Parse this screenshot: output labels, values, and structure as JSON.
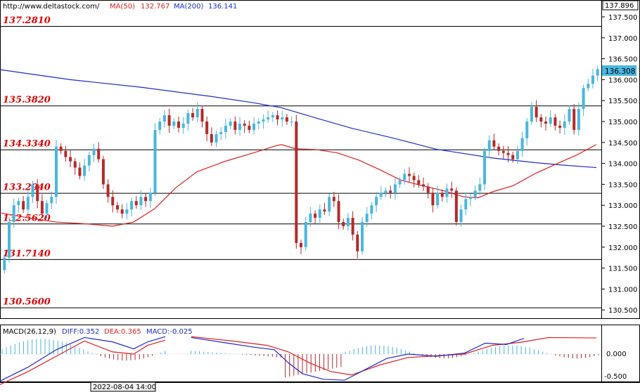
{
  "header": {
    "url": "http://www.deltastock.com/",
    "ma50_label": "MA(50)",
    "ma50_value": "132.767",
    "ma200_label": "MA(200)",
    "ma200_value": "136.141"
  },
  "colors": {
    "bull": "#49b7e0",
    "bear": "#b52a2a",
    "ma50": "#e02020",
    "ma200": "#1f2bd0",
    "level_text": "#e00000",
    "macd_diff": "#1f2bd0",
    "macd_dea": "#e02020",
    "hist_pos": "#49b7e0",
    "hist_neg": "#b52a2a"
  },
  "price_axis": {
    "top_value": "137.896",
    "current_value": "136.308",
    "ticks": [
      "137.500",
      "137.000",
      "136.500",
      "136.000",
      "135.500",
      "135.000",
      "134.500",
      "134.000",
      "133.500",
      "133.000",
      "132.500",
      "132.000",
      "131.500",
      "131.000",
      "130.500"
    ]
  },
  "levels": [
    {
      "label": "137.2810",
      "value": 137.281
    },
    {
      "label": "135.3820",
      "value": 135.382
    },
    {
      "label": "134.3340",
      "value": 134.334
    },
    {
      "label": "133.2940",
      "value": 133.294
    },
    {
      "label": "132.5620",
      "value": 132.562
    },
    {
      "label": "131.7140",
      "value": 131.714
    },
    {
      "label": "130.5600",
      "value": 130.56
    }
  ],
  "macd": {
    "title": "MACD(26,12,9)",
    "diff_label": "DIFF:0.352",
    "dea_label": "DEA:0.365",
    "macd_label": "MACD:-0.025",
    "ticks": [
      "0.000",
      "-0.500"
    ]
  },
  "time_label": "2022-08-04 14:00",
  "chart_data": {
    "type": "candlestick",
    "ylim": [
      130.37,
      137.9
    ],
    "ma200": [
      [
        0,
        136.24
      ],
      [
        100,
        136.0
      ],
      [
        200,
        135.82
      ],
      [
        300,
        135.6
      ],
      [
        360,
        135.45
      ],
      [
        400,
        135.33
      ],
      [
        450,
        135.08
      ],
      [
        500,
        134.84
      ],
      [
        560,
        134.6
      ],
      [
        620,
        134.34
      ],
      [
        700,
        134.13
      ],
      [
        760,
        134.02
      ],
      [
        800,
        133.96
      ],
      [
        848,
        133.9
      ]
    ],
    "ma50": [
      [
        0,
        132.82
      ],
      [
        40,
        132.7
      ],
      [
        80,
        132.6
      ],
      [
        120,
        132.56
      ],
      [
        160,
        132.5
      ],
      [
        190,
        132.6
      ],
      [
        220,
        132.92
      ],
      [
        250,
        133.42
      ],
      [
        280,
        133.8
      ],
      [
        320,
        134.05
      ],
      [
        360,
        134.25
      ],
      [
        390,
        134.41
      ],
      [
        400,
        134.45
      ],
      [
        420,
        134.35
      ],
      [
        450,
        134.33
      ],
      [
        480,
        134.25
      ],
      [
        510,
        134.08
      ],
      [
        540,
        133.85
      ],
      [
        570,
        133.6
      ],
      [
        600,
        133.47
      ],
      [
        630,
        133.35
      ],
      [
        660,
        133.2
      ],
      [
        680,
        133.18
      ],
      [
        700,
        133.32
      ],
      [
        730,
        133.47
      ],
      [
        760,
        133.75
      ],
      [
        790,
        133.98
      ],
      [
        820,
        134.2
      ],
      [
        848,
        134.45
      ]
    ],
    "candles": [
      [
        135.5,
        135.8,
        135.3,
        135.75
      ],
      [
        135.85,
        135.9,
        135.45,
        135.6
      ],
      [
        135.6,
        135.95,
        135.55,
        135.9
      ],
      [
        135.9,
        135.95,
        135.65,
        135.7
      ],
      [
        135.7,
        135.75,
        135.5,
        135.55
      ],
      [
        135.55,
        135.8,
        135.5,
        135.75
      ],
      [
        135.75,
        136.05,
        135.7,
        136.0
      ],
      [
        136.0,
        136.1,
        135.85,
        135.9
      ],
      [
        135.9,
        136.2,
        135.85,
        136.15
      ],
      [
        136.15,
        136.35,
        136.05,
        136.3
      ],
      [
        136.3,
        136.4,
        136.1,
        136.25
      ],
      [
        136.25,
        136.3,
        136.0,
        136.05
      ]
    ],
    "macd_diff": [
      [
        0,
        -0.62
      ],
      [
        40,
        -0.3
      ],
      [
        80,
        0.1
      ],
      [
        120,
        0.38
      ],
      [
        160,
        0.28
      ],
      [
        190,
        0.12
      ],
      [
        210,
        0.28
      ],
      [
        235,
        0.4
      ]
    ],
    "macd_dea": [
      [
        0,
        -0.7
      ],
      [
        40,
        -0.4
      ],
      [
        80,
        -0.05
      ],
      [
        120,
        0.3
      ],
      [
        160,
        0.05
      ],
      [
        190,
        0.0
      ],
      [
        210,
        0.2
      ],
      [
        235,
        0.32
      ]
    ],
    "macd_diff2": [
      [
        272,
        0.38
      ],
      [
        320,
        0.26
      ],
      [
        360,
        0.16
      ],
      [
        390,
        0.1
      ],
      [
        410,
        -0.2
      ],
      [
        430,
        -0.45
      ],
      [
        460,
        -0.58
      ],
      [
        490,
        -0.6
      ],
      [
        520,
        -0.35
      ],
      [
        550,
        -0.1
      ],
      [
        580,
        0.0
      ],
      [
        620,
        -0.05
      ],
      [
        660,
        0.02
      ],
      [
        690,
        0.25
      ],
      [
        720,
        0.22
      ],
      [
        745,
        0.36
      ]
    ],
    "macd_dea2": [
      [
        272,
        0.4
      ],
      [
        330,
        0.3
      ],
      [
        380,
        0.2
      ],
      [
        410,
        0.05
      ],
      [
        440,
        -0.2
      ],
      [
        470,
        -0.4
      ],
      [
        500,
        -0.48
      ],
      [
        540,
        -0.25
      ],
      [
        580,
        -0.08
      ],
      [
        620,
        -0.04
      ],
      [
        660,
        0.0
      ],
      [
        700,
        0.2
      ],
      [
        740,
        0.27
      ],
      [
        780,
        0.38
      ],
      [
        848,
        0.37
      ]
    ]
  }
}
